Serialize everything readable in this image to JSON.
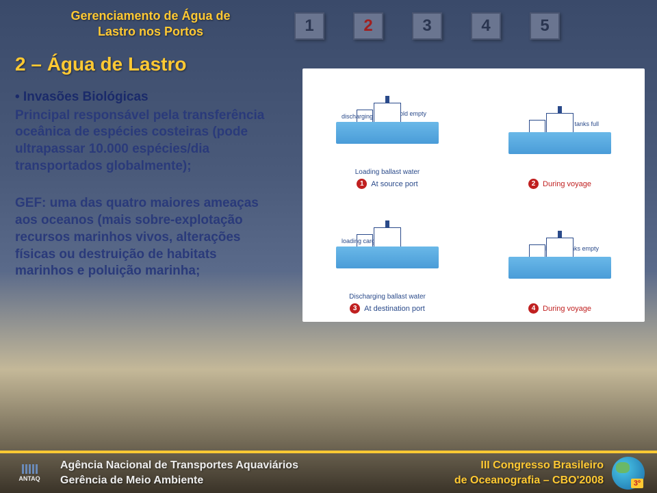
{
  "header": {
    "title_l1": "Gerenciamento de Água de",
    "title_l2": "Lastro nos Portos"
  },
  "steps": {
    "items": [
      "1",
      "2",
      "3",
      "4",
      "5"
    ],
    "active_index": 1,
    "colors": {
      "box_bg": "#6a7590",
      "box_border": "#4a5570",
      "text": "#2a3550",
      "active_text": "#a02020"
    }
  },
  "section": {
    "title": "2 – Água de Lastro"
  },
  "body": {
    "bullet1_header": "• Invasões Biológicas",
    "bullet1_body": "Principal responsável pela transferência oceânica de espécies costeiras (pode ultrapassar 10.000 espécies/dia transportados globalmente);",
    "bullet2_body": "GEF: uma das quatro maiores ameaças aos oceanos (mais sobre-explotação recursos marinhos vivos, alterações físicas ou destruição de habitats marinhos e poluição marinha;"
  },
  "diagram": {
    "background": "#ffffff",
    "sea_color": "#4a9cd8",
    "ship_line": "#2a4a8a",
    "caption_red": "#c02020",
    "cells": [
      {
        "num": "1",
        "caption": "At source port",
        "caption_color": "blue",
        "action": "discharging cargo",
        "cargo": "Cargo hold empty",
        "tanks": [
          false,
          true,
          true,
          true,
          false
        ],
        "arrows": "up",
        "label2": "Loading ballast water"
      },
      {
        "num": "2",
        "caption": "During voyage",
        "caption_color": "red",
        "action": "",
        "cargo": "Ballast tanks full",
        "tanks": [
          true,
          true,
          true,
          true,
          true
        ],
        "arrows": "",
        "label2": ""
      },
      {
        "num": "3",
        "caption": "At destination port",
        "caption_color": "blue",
        "action": "loading cargo",
        "cargo": "",
        "tanks": [
          false,
          true,
          false,
          true,
          false
        ],
        "arrows": "down",
        "label2": "Discharging ballast water"
      },
      {
        "num": "4",
        "caption": "During voyage",
        "caption_color": "red",
        "action": "",
        "cargo": "Ballast tanks empty",
        "tanks": [
          false,
          false,
          false,
          false,
          false
        ],
        "arrows": "",
        "label2": ""
      }
    ]
  },
  "footer": {
    "line_color": "#ffc933",
    "logo": "ANTAQ",
    "left_l1": "Agência Nacional de Transportes Aquaviários",
    "left_l2": "Gerência de Meio Ambiente",
    "right_l1": "III Congresso Brasileiro",
    "right_l2": "de Oceanografia – CBO'2008",
    "badge": "3º"
  },
  "palette": {
    "gold": "#ffc933",
    "text_blue": "#2a3a7a",
    "bg_top": "#3a4a6a",
    "bg_bottom": "#3a3328"
  }
}
